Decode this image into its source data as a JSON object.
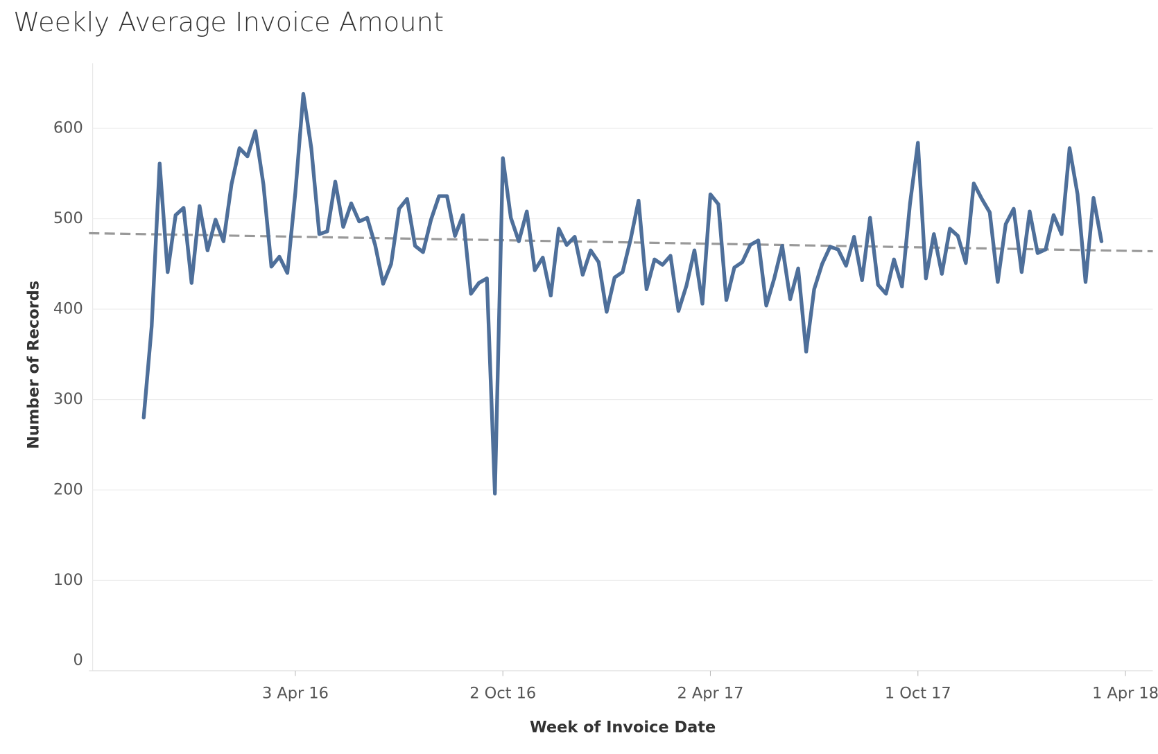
{
  "chart_data": {
    "type": "line",
    "title": "Weekly Average Invoice Amount",
    "x_label": "Week of Invoice Date",
    "y_label": "Number of Records",
    "x": [
      "2015-11-22",
      "2015-11-29",
      "2015-12-06",
      "2015-12-13",
      "2015-12-20",
      "2015-12-27",
      "2016-01-03",
      "2016-01-10",
      "2016-01-17",
      "2016-01-24",
      "2016-01-31",
      "2016-02-07",
      "2016-02-14",
      "2016-02-21",
      "2016-02-28",
      "2016-03-06",
      "2016-03-13",
      "2016-03-20",
      "2016-03-27",
      "2016-04-03",
      "2016-04-10",
      "2016-04-17",
      "2016-04-24",
      "2016-05-01",
      "2016-05-08",
      "2016-05-15",
      "2016-05-22",
      "2016-05-29",
      "2016-06-05",
      "2016-06-12",
      "2016-06-19",
      "2016-06-26",
      "2016-07-03",
      "2016-07-10",
      "2016-07-17",
      "2016-07-24",
      "2016-07-31",
      "2016-08-07",
      "2016-08-14",
      "2016-08-21",
      "2016-08-28",
      "2016-09-04",
      "2016-09-11",
      "2016-09-18",
      "2016-09-25",
      "2016-10-02",
      "2016-10-09",
      "2016-10-16",
      "2016-10-23",
      "2016-10-30",
      "2016-11-06",
      "2016-11-13",
      "2016-11-20",
      "2016-11-27",
      "2016-12-04",
      "2016-12-11",
      "2016-12-18",
      "2016-12-25",
      "2017-01-01",
      "2017-01-08",
      "2017-01-15",
      "2017-01-22",
      "2017-01-29",
      "2017-02-05",
      "2017-02-12",
      "2017-02-19",
      "2017-02-26",
      "2017-03-05",
      "2017-03-12",
      "2017-03-19",
      "2017-03-26",
      "2017-04-02",
      "2017-04-09",
      "2017-04-16",
      "2017-04-23",
      "2017-04-30",
      "2017-05-07",
      "2017-05-14",
      "2017-05-21",
      "2017-05-28",
      "2017-06-04",
      "2017-06-11",
      "2017-06-18",
      "2017-06-25",
      "2017-07-02",
      "2017-07-09",
      "2017-07-16",
      "2017-07-23",
      "2017-07-30",
      "2017-08-06",
      "2017-08-13",
      "2017-08-20",
      "2017-08-27",
      "2017-09-03",
      "2017-09-10",
      "2017-09-17",
      "2017-09-24",
      "2017-10-01",
      "2017-10-08",
      "2017-10-15",
      "2017-10-22",
      "2017-10-29",
      "2017-11-05",
      "2017-11-12",
      "2017-11-19",
      "2017-11-26",
      "2017-12-03",
      "2017-12-10",
      "2017-12-17",
      "2017-12-24",
      "2017-12-31",
      "2018-01-07",
      "2018-01-14",
      "2018-01-21",
      "2018-01-28",
      "2018-02-04",
      "2018-02-11",
      "2018-02-18",
      "2018-02-25",
      "2018-03-04",
      "2018-03-11"
    ],
    "series": [
      {
        "name": "Average Invoice Amount",
        "color": "#4e6f9a",
        "values": [
          280,
          381,
          561,
          441,
          504,
          512,
          429,
          514,
          465,
          499,
          475,
          538,
          578,
          569,
          597,
          538,
          447,
          458,
          440,
          529,
          638,
          578,
          483,
          486,
          541,
          491,
          517,
          497,
          501,
          471,
          428,
          450,
          511,
          522,
          470,
          463,
          499,
          525,
          525,
          481,
          504,
          417,
          429,
          434,
          196,
          567,
          501,
          475,
          508,
          443,
          457,
          415,
          489,
          471,
          480,
          438,
          465,
          452,
          397,
          435,
          441,
          477,
          520,
          422,
          455,
          449,
          459,
          398,
          426,
          465,
          406,
          527,
          516,
          410,
          446,
          452,
          471,
          476,
          404,
          434,
          470,
          411,
          445,
          353,
          422,
          450,
          469,
          466,
          448,
          480,
          432,
          501,
          427,
          417,
          455,
          425,
          516,
          584,
          434,
          483,
          439,
          489,
          481,
          451,
          539,
          522,
          507,
          430,
          494,
          511,
          441,
          508,
          462,
          466,
          504,
          483,
          578,
          527,
          430,
          523,
          475
        ]
      }
    ],
    "trendline": {
      "x": [
        "2015-10-05",
        "2018-04-25"
      ],
      "values": [
        484,
        464
      ],
      "color": "#999999"
    },
    "xlim": [
      "2015-10-05",
      "2018-04-25"
    ],
    "xticks": [
      {
        "value": "2016-04-03",
        "label": "3 Apr 16"
      },
      {
        "value": "2016-10-02",
        "label": "2 Oct 16"
      },
      {
        "value": "2017-04-02",
        "label": "2 Apr 17"
      },
      {
        "value": "2017-10-01",
        "label": "1 Oct 17"
      },
      {
        "value": "2018-04-01",
        "label": "1 Apr 18"
      }
    ],
    "ylim": [
      0,
      672
    ],
    "yticks": [
      0,
      100,
      200,
      300,
      400,
      500,
      600
    ],
    "grid": true
  }
}
